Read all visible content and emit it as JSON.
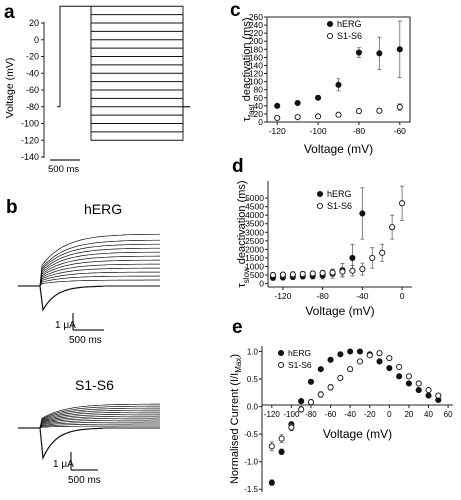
{
  "figure": {
    "panels": {
      "a": {
        "label": "a",
        "ylabel": "Voltage (mV)",
        "yticks": [
          "20",
          "0",
          "-20",
          "-40",
          "-60",
          "-80",
          "-100",
          "-120",
          "-140"
        ],
        "scalebar": "500 ms"
      },
      "b": {
        "label": "b",
        "trace_titles": [
          "hERG",
          "S1-S6"
        ],
        "hERG_scale": {
          "current": "1 μA",
          "time": "500 ms"
        },
        "s1s6_scale": {
          "current": "1 μA",
          "time": "500 ms"
        }
      },
      "c": {
        "label": "c"
      },
      "d": {
        "label": "d"
      },
      "e": {
        "label": "e"
      }
    }
  },
  "chart_data": [
    {
      "panel": "a",
      "type": "line",
      "description_of_protocol": "step voltage protocol",
      "xlabel": "",
      "ylabel": "Voltage (mV)",
      "ylim": [
        -140,
        20
      ],
      "holding_mV": -80,
      "prepulse_mV": 40,
      "test_steps_mV": [
        40,
        30,
        20,
        10,
        0,
        -10,
        -20,
        -30,
        -40,
        -50,
        -60,
        -70,
        -80,
        -90,
        -100,
        -110,
        -120
      ]
    },
    {
      "panel": "c",
      "type": "scatter",
      "xlabel": "Voltage (mV)",
      "ylabel": "τfast deactivation (ms)",
      "ylabel_parts": {
        "tau": "τ",
        "sub": "fast",
        "rest": "deactivation (ms)"
      },
      "xlim": [
        -125,
        -55
      ],
      "ylim": [
        0,
        260
      ],
      "xticks": [
        "-120",
        "-100",
        "-80",
        "-60"
      ],
      "yticks": [
        "0",
        "20",
        "40",
        "60",
        "80",
        "100",
        "120",
        "140",
        "160",
        "180",
        "200",
        "220",
        "240",
        "260"
      ],
      "legend": "top-left",
      "series": [
        {
          "name": "hERG",
          "marker": "filled",
          "x": [
            -120,
            -110,
            -100,
            -90,
            -80,
            -70,
            -60
          ],
          "y": [
            40,
            47,
            60,
            92,
            172,
            170,
            180
          ],
          "err": [
            3,
            3,
            5,
            15,
            12,
            40,
            70
          ]
        },
        {
          "name": "S1-S6",
          "marker": "open",
          "x": [
            -120,
            -110,
            -100,
            -90,
            -80,
            -70,
            -60
          ],
          "y": [
            10,
            12,
            14,
            18,
            27,
            28,
            37
          ],
          "err": [
            2,
            2,
            2,
            4,
            5,
            5,
            8
          ]
        }
      ]
    },
    {
      "panel": "d",
      "type": "scatter",
      "xlabel": "Voltage (mV)",
      "ylabel": "τslow deactivation (ms)",
      "ylabel_parts": {
        "tau": "τ",
        "sub": "slow",
        "rest": "deactivation (ms)"
      },
      "xlim": [
        -135,
        10
      ],
      "ylim": [
        -200,
        6000
      ],
      "xticks": [
        "-120",
        "-80",
        "-40",
        "0"
      ],
      "yticks": [
        "0",
        "500",
        "1000",
        "1500",
        "2000",
        "2500",
        "3000",
        "3500",
        "4000",
        "4500",
        "5000"
      ],
      "legend": "top-left",
      "series": [
        {
          "name": "hERG",
          "marker": "filled",
          "x": [
            -130,
            -120,
            -110,
            -100,
            -90,
            -80,
            -70,
            -60,
            -50,
            -40
          ],
          "y": [
            340,
            360,
            390,
            420,
            440,
            470,
            560,
            780,
            1500,
            4100
          ],
          "err": [
            150,
            150,
            150,
            150,
            170,
            200,
            250,
            400,
            800,
            1500
          ]
        },
        {
          "name": "S1-S6",
          "marker": "open",
          "x": [
            -130,
            -120,
            -110,
            -100,
            -90,
            -80,
            -70,
            -60,
            -50,
            -40,
            -30,
            -20,
            -10,
            0
          ],
          "y": [
            500,
            520,
            540,
            560,
            590,
            620,
            650,
            700,
            750,
            850,
            1500,
            1800,
            3300,
            4700
          ],
          "err": [
            150,
            150,
            150,
            150,
            150,
            150,
            200,
            250,
            300,
            350,
            600,
            500,
            700,
            1000
          ]
        }
      ]
    },
    {
      "panel": "e",
      "type": "scatter",
      "xlabel": "Voltage (mV)",
      "ylabel": "Normalised Current (I/IMax)",
      "ylabel_parts": {
        "main": "Normalised Current (I/I",
        "sub": "Max",
        "close": ")"
      },
      "xlim": [
        -130,
        65
      ],
      "ylim": [
        -1.55,
        1.1
      ],
      "xticks": [
        "-120",
        "-100",
        "-80",
        "-60",
        "-40",
        "-20",
        "0",
        "20",
        "40",
        "60"
      ],
      "yticks": [
        "1.0",
        "0.5",
        "0.0",
        "-0.5",
        "-1.0",
        "-1.5"
      ],
      "legend": "top-left",
      "series": [
        {
          "name": "hERG",
          "marker": "filled",
          "x": [
            -120,
            -110,
            -100,
            -90,
            -80,
            -70,
            -60,
            -50,
            -40,
            -30,
            -20,
            -10,
            0,
            10,
            20,
            30,
            40,
            50
          ],
          "y": [
            -1.38,
            -0.82,
            -0.32,
            0.1,
            0.45,
            0.68,
            0.85,
            0.95,
            1.0,
            1.0,
            0.95,
            0.82,
            0.7,
            0.55,
            0.42,
            0.3,
            0.2,
            0.12
          ],
          "err": [
            0.05,
            0.05,
            0.04,
            0.04,
            0.03,
            0.03,
            0.02,
            0.02,
            0.01,
            0.01,
            0.02,
            0.02,
            0.02,
            0.02,
            0.02,
            0.02,
            0.02,
            0.02
          ]
        },
        {
          "name": "S1-S6",
          "marker": "open",
          "x": [
            -120,
            -110,
            -100,
            -90,
            -80,
            -70,
            -60,
            -50,
            -40,
            -30,
            -20,
            -10,
            0,
            10,
            20,
            30,
            40,
            50
          ],
          "y": [
            -0.72,
            -0.58,
            -0.38,
            -0.05,
            0.08,
            0.22,
            0.35,
            0.52,
            0.68,
            0.82,
            0.93,
            0.97,
            0.88,
            0.72,
            0.55,
            0.42,
            0.3,
            0.2
          ],
          "err": [
            0.08,
            0.07,
            0.06,
            0.05,
            0.05,
            0.05,
            0.05,
            0.04,
            0.04,
            0.03,
            0.03,
            0.02,
            0.03,
            0.03,
            0.03,
            0.03,
            0.03,
            0.03
          ]
        }
      ]
    }
  ]
}
